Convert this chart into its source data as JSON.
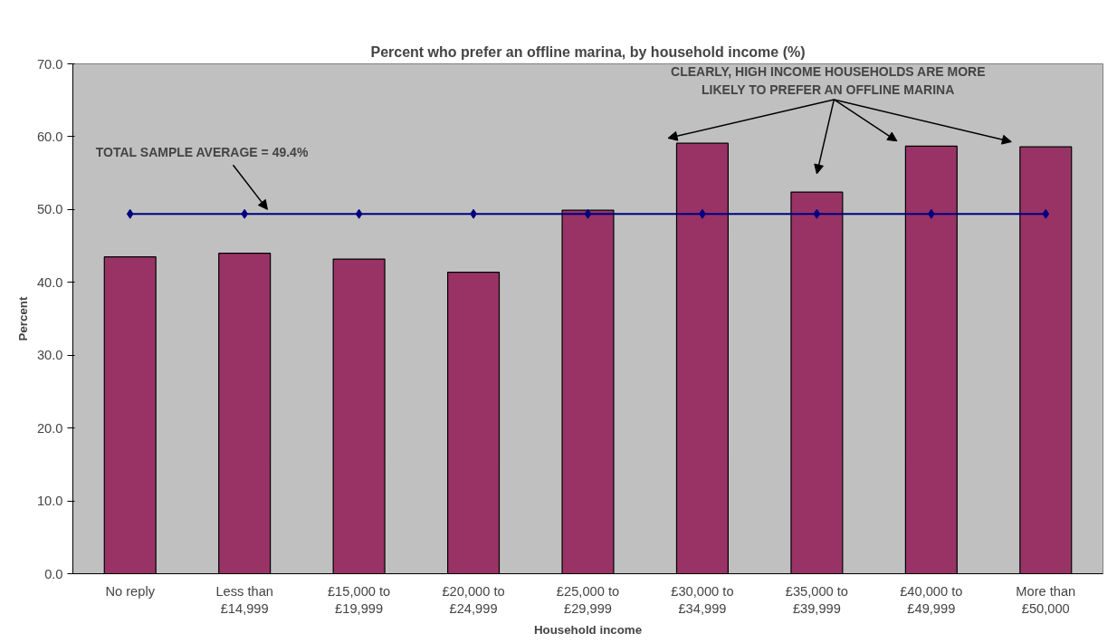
{
  "chart_data": {
    "type": "bar",
    "title": "Percent who prefer an offline marina, by household income (%)",
    "xlabel": "Household income",
    "ylabel": "Percent",
    "categories": [
      "No reply",
      "Less than\n£14,999",
      "£15,000 to\n£19,999",
      "£20,000 to\n£24,999",
      "£25,000 to\n£29,999",
      "£30,000 to\n£34,999",
      "£35,000 to\n£39,999",
      "£40,000 to\n£49,999",
      "More than\n£50,000"
    ],
    "series": [
      {
        "color": "#993366",
        "values": [
          43.5,
          44.0,
          43.2,
          41.4,
          49.9,
          59.1,
          52.4,
          58.7,
          58.6
        ]
      },
      {
        "type": "line",
        "color": "#000080",
        "marker": "diamond",
        "values": [
          49.4,
          49.4,
          49.4,
          49.4,
          49.4,
          49.4,
          49.4,
          49.4,
          49.4
        ]
      }
    ],
    "ylim": [
      0,
      70
    ],
    "yticks": [
      {
        "value": 0,
        "label": "0.0"
      },
      {
        "value": 10,
        "label": "10.0"
      },
      {
        "value": 20,
        "label": "20.0"
      },
      {
        "value": 30,
        "label": "30.0"
      },
      {
        "value": 40,
        "label": "40.0"
      },
      {
        "value": 50,
        "label": "50.0"
      },
      {
        "value": 60,
        "label": "60.0"
      },
      {
        "value": 70,
        "label": "70.0"
      }
    ],
    "annotations": [
      "TOTAL SAMPLE AVERAGE = 49.4%",
      "CLEARLY, HIGH INCOME HOUSEHOLDS ARE MORE\nLIKELY TO PREFER AN OFFLINE MARINA"
    ],
    "grid": false
  }
}
